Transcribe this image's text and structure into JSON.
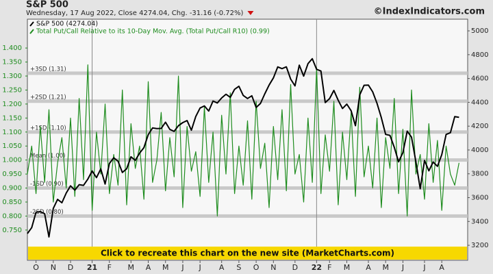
{
  "chart_data": {
    "type": "line",
    "title": "S&P 500",
    "subtitle": "Wednesday, 17 Aug 2022, Close 4274.04, Chg. -31.16 (-0.72%)",
    "source": "©IndexIndicators.com",
    "banner": "Click to recreate this chart on the new site (MarketCharts.com)",
    "xlim": [
      0,
      102
    ],
    "xticks": [
      {
        "value": 2,
        "label": "O"
      },
      {
        "value": 6,
        "label": "N"
      },
      {
        "value": 10,
        "label": "D"
      },
      {
        "value": 15,
        "label": "21"
      },
      {
        "value": 19,
        "label": "F"
      },
      {
        "value": 24,
        "label": "M"
      },
      {
        "value": 28,
        "label": "A"
      },
      {
        "value": 32,
        "label": "M"
      },
      {
        "value": 36,
        "label": "J"
      },
      {
        "value": 40,
        "label": "J"
      },
      {
        "value": 45,
        "label": "A"
      },
      {
        "value": 49,
        "label": "S"
      },
      {
        "value": 53,
        "label": "O"
      },
      {
        "value": 57,
        "label": "N"
      },
      {
        "value": 62,
        "label": "D"
      },
      {
        "value": 67,
        "label": "22"
      },
      {
        "value": 70,
        "label": "F"
      },
      {
        "value": 74,
        "label": "M"
      },
      {
        "value": 79,
        "label": "A"
      },
      {
        "value": 83,
        "label": "M"
      },
      {
        "value": 87,
        "label": "J"
      },
      {
        "value": 92,
        "label": "J"
      },
      {
        "value": 96,
        "label": "A"
      }
    ],
    "ylim": [
      0.642,
      1.503
    ],
    "yticks": [
      {
        "value": 0.75,
        "label": "0.750"
      },
      {
        "value": 0.8,
        "label": "0.800"
      },
      {
        "value": 0.85,
        "label": "0.850"
      },
      {
        "value": 0.9,
        "label": "0.900"
      },
      {
        "value": 0.95,
        "label": "0.950"
      },
      {
        "value": 1.0,
        "label": "1.000"
      },
      {
        "value": 1.05,
        "label": "1.050"
      },
      {
        "value": 1.1,
        "label": "1.100"
      },
      {
        "value": 1.15,
        "label": "1.150"
      },
      {
        "value": 1.2,
        "label": "1.200"
      },
      {
        "value": 1.25,
        "label": "1.250"
      },
      {
        "value": 1.3,
        "label": "1.300"
      },
      {
        "value": 1.35,
        "label": "1.350"
      },
      {
        "value": 1.4,
        "label": "1.400"
      }
    ],
    "y2lim": [
      3074,
      5098
    ],
    "y2ticks": [
      3200,
      3400,
      3600,
      3800,
      4000,
      4200,
      4400,
      4600,
      4800,
      5000
    ],
    "reference_lines": [
      {
        "value": 1.31,
        "label": "+3SD (1.31)"
      },
      {
        "value": 1.21,
        "label": "+2SD (1.21)"
      },
      {
        "value": 1.1,
        "label": "+1SD (1.10)"
      },
      {
        "value": 1.0,
        "label": "Mean (1.00)"
      },
      {
        "value": 0.9,
        "label": "-1SD (0.90)"
      },
      {
        "value": 0.8,
        "label": "-2SD (0.80)"
      }
    ],
    "series": [
      {
        "name": "Total Put/Call Relative to its 10-Day Mov. Avg. (Total Put/Call R10) (0.99)",
        "color": "#1e8c1e",
        "axis": "y",
        "values": [
          0.95,
          1.05,
          0.88,
          1.12,
          0.92,
          1.18,
          0.85,
          0.99,
          1.08,
          0.9,
          1.15,
          0.87,
          1.22,
          0.93,
          1.34,
          0.82,
          1.1,
          0.95,
          1.2,
          0.88,
          1.02,
          0.91,
          1.25,
          0.84,
          1.13,
          0.97,
          1.05,
          0.86,
          1.28,
          0.92,
          1.0,
          1.17,
          0.89,
          1.08,
          0.94,
          1.3,
          0.83,
          1.12,
          0.96,
          1.03,
          0.87,
          1.19,
          0.92,
          1.1,
          0.8,
          1.16,
          0.95,
          1.24,
          0.88,
          1.05,
          0.91,
          1.14,
          0.86,
          1.21,
          0.97,
          1.06,
          0.83,
          1.12,
          0.93,
          1.18,
          0.89,
          1.27,
          0.95,
          1.02,
          0.85,
          1.15,
          0.92,
          1.33,
          0.88,
          1.09,
          0.96,
          1.21,
          0.84,
          1.1,
          0.93,
          1.17,
          0.87,
          1.26,
          0.94,
          1.05,
          0.9,
          1.15,
          0.83,
          1.08,
          0.97,
          1.22,
          0.88,
          1.11,
          0.8,
          1.25,
          0.95,
          1.02,
          0.86,
          1.13,
          0.92,
          1.07,
          0.82,
          1.05,
          0.95,
          0.91,
          0.99
        ]
      },
      {
        "name": "S&P 500 (4274.04)",
        "color": "#000000",
        "axis": "y2",
        "values": [
          3298,
          3348,
          3477,
          3483,
          3465,
          3270,
          3509,
          3585,
          3557,
          3638,
          3699,
          3663,
          3709,
          3703,
          3756,
          3824,
          3768,
          3841,
          3714,
          3887,
          3934,
          3906,
          3811,
          3842,
          3943,
          3913,
          3974,
          4020,
          4129,
          4185,
          4180,
          4181,
          4233,
          4173,
          4156,
          4204,
          4230,
          4247,
          4166,
          4281,
          4352,
          4370,
          4327,
          4411,
          4395,
          4437,
          4468,
          4442,
          4509,
          4535,
          4458,
          4432,
          4455,
          4357,
          4391,
          4471,
          4545,
          4605,
          4697,
          4683,
          4698,
          4595,
          4538,
          4712,
          4620,
          4725,
          4766,
          4677,
          4663,
          4398,
          4431,
          4500,
          4418,
          4348,
          4385,
          4329,
          4204,
          4463,
          4543,
          4545,
          4488,
          4392,
          4272,
          4131,
          4123,
          4023,
          3901,
          3978,
          4158,
          4108,
          3900,
          3675,
          3912,
          3825,
          3899,
          3863,
          3961,
          4130,
          4145,
          4280,
          4274
        ]
      }
    ]
  }
}
